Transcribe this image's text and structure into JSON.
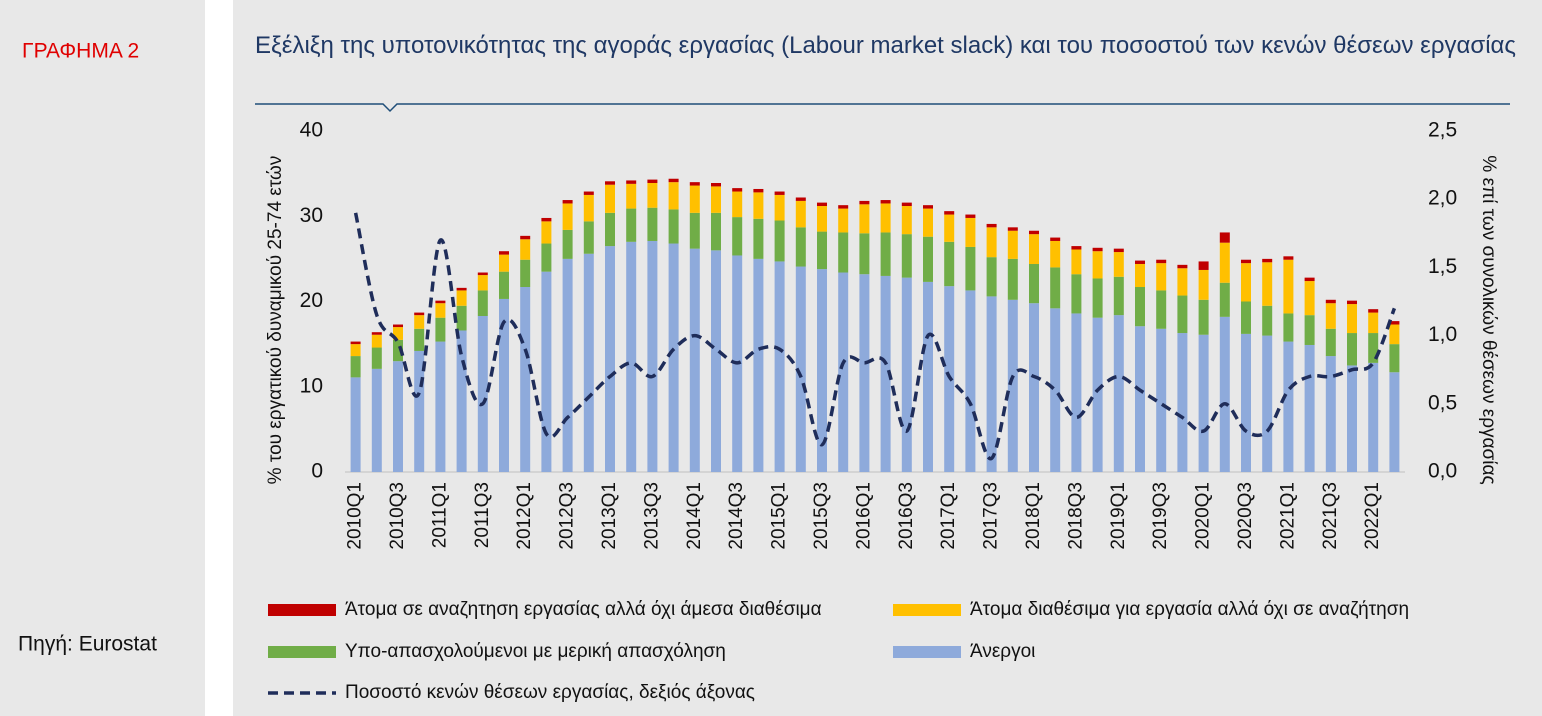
{
  "chart_data": {
    "type": "bar",
    "figure_label": "ΓΡΑΦΗΜΑ 2",
    "source": "Πηγή: Eurostat",
    "title": "Εξέλιξη της υποτονικότητας της αγοράς εργασίας (Labour market slack) και του ποσοστού των κενών θέσεων εργασίας",
    "y_label": "% του εργατικού δυναμικού 25-74 ετών",
    "y2_label": "% επί των συνολικών θέσεων εργασίας",
    "stacked": true,
    "categories": [
      "2010Q1",
      null,
      "2010Q3",
      null,
      "2011Q1",
      null,
      "2011Q3",
      null,
      "2012Q1",
      null,
      "2012Q3",
      null,
      "2013Q1",
      null,
      "2013Q3",
      null,
      "2014Q1",
      null,
      "2014Q3",
      null,
      "2015Q1",
      null,
      "2015Q3",
      null,
      "2016Q1",
      null,
      "2016Q3",
      null,
      "2017Q1",
      null,
      "2017Q3",
      null,
      "2018Q1",
      null,
      "2018Q3",
      null,
      "2019Q1",
      null,
      "2019Q3",
      null,
      "2020Q1",
      null,
      "2020Q3",
      null,
      "2021Q1",
      null,
      "2021Q3",
      null,
      "2022Q1",
      null
    ],
    "series": [
      {
        "name": "Άνεργοι",
        "color": "#8eaadb",
        "values": [
          11.1,
          12.1,
          13.0,
          14.2,
          15.3,
          16.6,
          18.3,
          20.3,
          21.7,
          23.5,
          25.0,
          25.6,
          26.5,
          27.0,
          27.1,
          26.8,
          26.2,
          26.0,
          25.4,
          25.0,
          24.7,
          24.1,
          23.8,
          23.4,
          23.2,
          23.0,
          22.8,
          22.3,
          21.8,
          21.3,
          20.6,
          20.2,
          19.8,
          19.2,
          18.6,
          18.1,
          18.4,
          17.1,
          16.8,
          16.3,
          16.1,
          18.2,
          16.2,
          16.0,
          15.3,
          14.9,
          13.6,
          12.5,
          12.8,
          11.7
        ]
      },
      {
        "name": "Υπο-απασχολούμενοι με μερική απασχόληση",
        "color": "#70ad47",
        "values": [
          2.5,
          2.5,
          2.5,
          2.6,
          2.8,
          2.9,
          3.0,
          3.2,
          3.2,
          3.3,
          3.4,
          3.8,
          3.9,
          3.9,
          3.9,
          4.0,
          4.2,
          4.4,
          4.5,
          4.7,
          4.8,
          4.6,
          4.4,
          4.7,
          4.8,
          5.1,
          5.1,
          5.3,
          5.2,
          5.1,
          4.6,
          4.8,
          4.6,
          4.8,
          4.6,
          4.6,
          4.5,
          4.6,
          4.5,
          4.4,
          4.1,
          4.0,
          3.8,
          3.5,
          3.3,
          3.5,
          3.2,
          3.8,
          3.5,
          3.3
        ]
      },
      {
        "name": "Άτομα διαθέσιμα για εργασία αλλά όχι σε αναζήτηση",
        "color": "#ffc000",
        "values": [
          1.4,
          1.5,
          1.5,
          1.6,
          1.7,
          1.8,
          1.8,
          2.0,
          2.4,
          2.6,
          3.1,
          3.1,
          3.3,
          2.9,
          2.9,
          3.2,
          3.2,
          3.1,
          3.0,
          3.1,
          3.0,
          3.1,
          3.0,
          2.8,
          3.4,
          3.4,
          3.3,
          3.3,
          3.2,
          3.4,
          3.5,
          3.3,
          3.5,
          3.1,
          2.9,
          3.2,
          2.9,
          2.7,
          3.2,
          3.2,
          3.5,
          4.7,
          4.5,
          5.1,
          6.3,
          4.0,
          3.0,
          3.4,
          2.4,
          2.3
        ]
      },
      {
        "name": "Άτομα σε αναζητηση εργασίας αλλά όχι άμεσα διαθέσιμα",
        "color": "#c00000",
        "values": [
          0.3,
          0.3,
          0.3,
          0.3,
          0.3,
          0.3,
          0.3,
          0.4,
          0.4,
          0.4,
          0.4,
          0.4,
          0.4,
          0.4,
          0.4,
          0.4,
          0.4,
          0.4,
          0.4,
          0.4,
          0.4,
          0.4,
          0.4,
          0.4,
          0.4,
          0.4,
          0.4,
          0.4,
          0.4,
          0.4,
          0.4,
          0.4,
          0.4,
          0.4,
          0.4,
          0.4,
          0.4,
          0.4,
          0.4,
          0.4,
          1.0,
          1.2,
          0.4,
          0.4,
          0.4,
          0.4,
          0.4,
          0.4,
          0.4,
          0.4
        ]
      },
      {
        "name": "Ποσοστό κενών θέσεων εργασίας, δεξιός άξονας",
        "color": "#1f2d5a",
        "type": "line",
        "axis": "y2",
        "values": [
          1.9,
          1.15,
          0.95,
          0.58,
          1.7,
          0.85,
          0.5,
          1.1,
          0.9,
          0.28,
          0.4,
          0.55,
          0.7,
          0.8,
          0.7,
          0.9,
          1.0,
          0.9,
          0.8,
          0.9,
          0.9,
          0.7,
          0.2,
          0.8,
          0.8,
          0.8,
          0.3,
          1.0,
          0.7,
          0.5,
          0.1,
          0.7,
          0.7,
          0.6,
          0.4,
          0.6,
          0.7,
          0.6,
          0.5,
          0.4,
          0.3,
          0.5,
          0.3,
          0.3,
          0.6,
          0.7,
          0.7,
          0.75,
          0.8,
          1.2
        ]
      }
    ],
    "ylim": [
      0,
      40
    ],
    "yticks": [
      0,
      10,
      20,
      30,
      40
    ],
    "y2lim": [
      0,
      2.5
    ],
    "y2ticks": [
      {
        "value": 0,
        "label": "0,0"
      },
      {
        "value": 0.5,
        "label": "0,5"
      },
      {
        "value": 1,
        "label": "1,0"
      },
      {
        "value": 1.5,
        "label": "1,5"
      },
      {
        "value": 2,
        "label": "2,0"
      },
      {
        "value": 2.5,
        "label": "2,5"
      }
    ],
    "grid": false
  }
}
